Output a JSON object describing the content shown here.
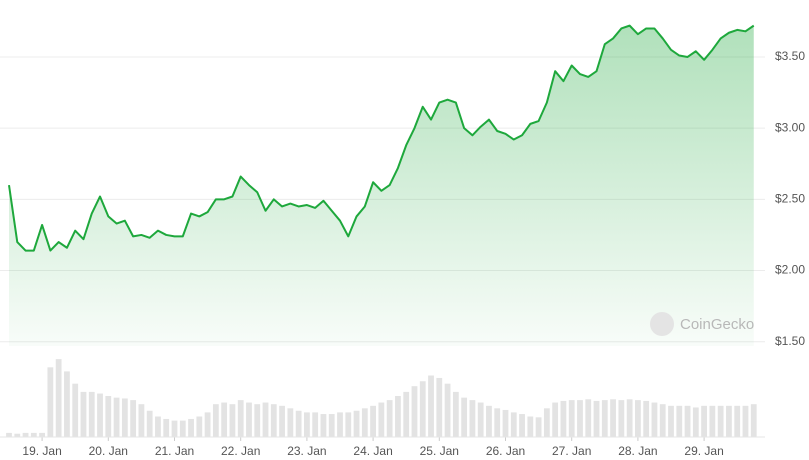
{
  "chart_data": {
    "type": "line",
    "watermark": "CoinGecko",
    "categories": [
      null,
      null,
      null,
      null,
      "19. Jan",
      null,
      null,
      null,
      null,
      null,
      null,
      null,
      "20. Jan",
      null,
      null,
      null,
      null,
      null,
      null,
      null,
      "21. Jan",
      null,
      null,
      null,
      null,
      null,
      null,
      null,
      "22. Jan",
      null,
      null,
      null,
      null,
      null,
      null,
      null,
      "23. Jan",
      null,
      null,
      null,
      null,
      null,
      null,
      null,
      "24. Jan",
      null,
      null,
      null,
      null,
      null,
      null,
      null,
      "25. Jan",
      null,
      null,
      null,
      null,
      null,
      null,
      null,
      "26. Jan",
      null,
      null,
      null,
      null,
      null,
      null,
      null,
      "27. Jan",
      null,
      null,
      null,
      null,
      null,
      null,
      null,
      "28. Jan",
      null,
      null,
      null,
      null,
      null,
      null,
      null,
      "29. Jan",
      null,
      null,
      null,
      null,
      null,
      null
    ],
    "series": [
      {
        "color": "#1ea83c",
        "values": [
          2.6,
          2.2,
          2.14,
          2.14,
          2.32,
          2.14,
          2.2,
          2.16,
          2.28,
          2.22,
          2.4,
          2.52,
          2.38,
          2.33,
          2.35,
          2.24,
          2.25,
          2.23,
          2.28,
          2.25,
          2.24,
          2.24,
          2.4,
          2.38,
          2.41,
          2.5,
          2.5,
          2.52,
          2.66,
          2.6,
          2.55,
          2.42,
          2.5,
          2.45,
          2.47,
          2.45,
          2.46,
          2.44,
          2.49,
          2.42,
          2.35,
          2.24,
          2.38,
          2.45,
          2.62,
          2.56,
          2.6,
          2.72,
          2.88,
          3.0,
          3.15,
          3.06,
          3.18,
          3.2,
          3.18,
          3.0,
          2.95,
          3.01,
          3.06,
          2.98,
          2.96,
          2.92,
          2.95,
          3.03,
          3.05,
          3.18,
          3.4,
          3.33,
          3.44,
          3.38,
          3.36,
          3.4,
          3.59,
          3.63,
          3.7,
          3.72,
          3.66,
          3.7,
          3.7,
          3.63,
          3.55,
          3.51,
          3.5,
          3.54,
          3.48,
          3.55,
          3.63,
          3.67,
          3.69,
          3.68,
          3.72
        ]
      },
      {
        "type": "bar",
        "color": "#e3e3e3",
        "values": [
          5,
          4,
          5,
          5,
          5,
          85,
          95,
          80,
          65,
          55,
          55,
          53,
          50,
          48,
          47,
          45,
          40,
          32,
          25,
          22,
          20,
          20,
          22,
          25,
          30,
          40,
          42,
          40,
          45,
          42,
          40,
          42,
          40,
          38,
          35,
          32,
          30,
          30,
          28,
          28,
          30,
          30,
          32,
          35,
          38,
          42,
          45,
          50,
          55,
          62,
          68,
          75,
          72,
          65,
          55,
          48,
          45,
          42,
          38,
          35,
          33,
          30,
          28,
          25,
          24,
          35,
          42,
          44,
          45,
          45,
          46,
          44,
          45,
          46,
          45,
          46,
          45,
          44,
          42,
          40,
          38,
          38,
          38,
          36,
          38,
          38,
          38,
          38,
          38,
          38,
          40
        ]
      }
    ],
    "ylim": [
      1.47,
      3.9
    ],
    "yticks": [
      {
        "value": 1.5,
        "label": "$1.50"
      },
      {
        "value": 2.0,
        "label": "$2.00"
      },
      {
        "value": 2.5,
        "label": "$2.50"
      },
      {
        "value": 3.0,
        "label": "$3.00"
      },
      {
        "value": 3.5,
        "label": "$3.50"
      }
    ],
    "vlim": [
      0,
      100
    ],
    "grid": true
  }
}
